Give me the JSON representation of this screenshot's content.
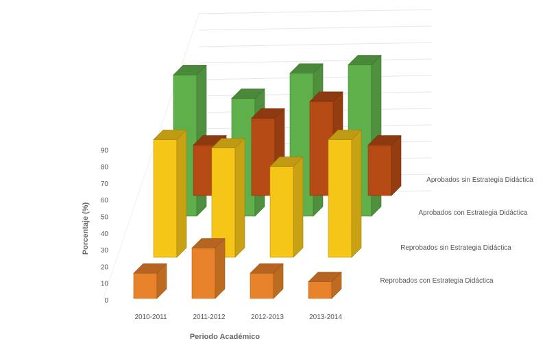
{
  "chart_data": {
    "type": "bar",
    "title": "",
    "xlabel": "Periodo Académico",
    "ylabel": "Porcentaje (%)",
    "categories": [
      "2010-2011",
      "2011-2012",
      "2012-2013",
      "2013-2014"
    ],
    "yticks": [
      "0",
      "10",
      "20",
      "30",
      "40",
      "50",
      "60",
      "70",
      "80",
      "90"
    ],
    "ylim": [
      0,
      90
    ],
    "grid": true,
    "legend_position": "right",
    "series": [
      {
        "name": "Reprobados con Estrategia Didáctica",
        "values": [
          15,
          30,
          15,
          10
        ],
        "color": "#e8822a"
      },
      {
        "name": "Reprobados sin Estrategia Didáctica",
        "values": [
          70,
          65,
          54,
          70
        ],
        "color": "#f5c518"
      },
      {
        "name": "Aprobados con Estrategia Didáctica",
        "values": [
          84,
          70,
          85,
          90
        ],
        "color": "#5fb04a"
      },
      {
        "name": "Aprobados sin Estrategia Didáctica",
        "values": [
          30,
          46,
          56,
          30
        ],
        "color": "#b54a14"
      }
    ]
  }
}
